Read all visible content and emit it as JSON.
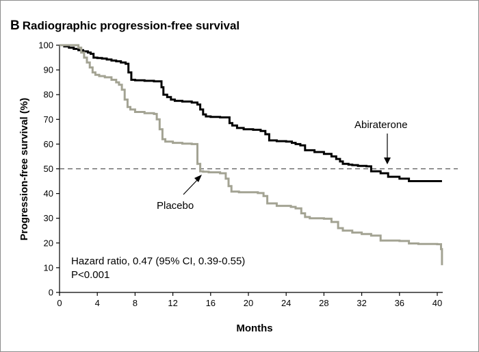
{
  "panel": {
    "letter": "B",
    "title": "Radiographic progression-free survival"
  },
  "chart_data": {
    "type": "line",
    "step": true,
    "title": "Radiographic progression-free survival",
    "xlabel": "Months",
    "ylabel": "Progression-free survival (%)",
    "xlim": [
      0,
      40
    ],
    "ylim": [
      0,
      100
    ],
    "xticks": [
      0,
      4,
      8,
      12,
      16,
      20,
      24,
      28,
      32,
      36,
      40
    ],
    "yticks": [
      0,
      10,
      20,
      30,
      40,
      50,
      60,
      70,
      80,
      90,
      100
    ],
    "grid": false,
    "reference_line": {
      "y": 50,
      "style": "dashed"
    },
    "series": [
      {
        "name": "Abiraterone",
        "color": "#000000",
        "x": [
          0,
          0.5,
          1.0,
          1.5,
          2.0,
          2.5,
          3.0,
          3.3,
          3.6,
          4.0,
          4.5,
          5.0,
          5.5,
          6.0,
          6.5,
          7.0,
          7.3,
          7.6,
          8.0,
          9.0,
          10.0,
          10.8,
          11.0,
          11.4,
          11.8,
          12.2,
          13.0,
          14.0,
          14.6,
          14.9,
          15.2,
          15.5,
          16.0,
          17.0,
          18.0,
          18.3,
          18.8,
          19.5,
          20.5,
          21.3,
          21.8,
          22.2,
          23.0,
          24.0,
          24.6,
          25.0,
          25.5,
          26.0,
          27.0,
          28.0,
          28.8,
          29.3,
          29.7,
          30.0,
          30.6,
          31.0,
          31.6,
          32.5,
          33.0,
          34.0,
          34.8,
          36.0,
          37.0,
          38.5,
          40.5
        ],
        "y": [
          100,
          99.5,
          99,
          98.5,
          98,
          97.5,
          97,
          96.5,
          95,
          94.8,
          94.6,
          94.2,
          93.8,
          93.5,
          93,
          92.5,
          89,
          86,
          85.8,
          85.6,
          85.4,
          83,
          80,
          79,
          78,
          77.5,
          77.2,
          76.8,
          76,
          74,
          72,
          71.2,
          71,
          70.8,
          68.5,
          67.5,
          66.5,
          66,
          65.8,
          65.3,
          64,
          61.5,
          61.2,
          61,
          60.5,
          60,
          59.5,
          57.5,
          56.8,
          56,
          55,
          54,
          53,
          52,
          51.7,
          51.5,
          51.2,
          51,
          49,
          48.2,
          46.8,
          46,
          45,
          45,
          45
        ]
      },
      {
        "name": "Placebo",
        "color": "#a3a393",
        "x": [
          0,
          0.6,
          1.2,
          2.0,
          2.3,
          2.6,
          2.9,
          3.2,
          3.5,
          3.8,
          4.2,
          4.8,
          5.5,
          6.0,
          6.3,
          6.6,
          6.9,
          7.2,
          7.5,
          8.0,
          9.0,
          10.0,
          10.3,
          10.6,
          10.9,
          11.2,
          12.0,
          13.0,
          14.0,
          14.6,
          14.9,
          15.2,
          15.8,
          17.0,
          17.6,
          17.9,
          18.2,
          19.0,
          21.0,
          21.6,
          22.0,
          23.0,
          24.5,
          25.0,
          25.6,
          26.0,
          26.5,
          28.0,
          28.8,
          29.5,
          30.0,
          31.0,
          32.0,
          33.0,
          34.0,
          36.0,
          37.0,
          38.0,
          40.0,
          40.4,
          40.5
        ],
        "y": [
          100,
          100,
          100,
          99,
          97,
          95,
          93,
          91,
          89,
          88,
          87.5,
          87,
          86,
          85,
          84,
          82,
          78,
          75,
          74,
          73,
          72.5,
          72.2,
          70,
          66,
          62,
          61,
          60.5,
          60.2,
          60,
          52,
          49,
          48.8,
          48.6,
          48.2,
          46,
          43,
          40.8,
          40.5,
          40.2,
          39,
          36,
          35,
          34.6,
          34,
          32,
          30.5,
          30,
          29.8,
          28.5,
          26,
          25,
          24.2,
          23.6,
          23,
          21,
          20.8,
          19.8,
          19.6,
          19.5,
          17.5,
          11
        ]
      }
    ],
    "annotations": {
      "abiraterone_label": "Abiraterone",
      "placebo_label": "Placebo",
      "hazard_ratio": "Hazard ratio, 0.47 (95% CI, 0.39-0.55)",
      "p_value": "P<0.001"
    }
  }
}
